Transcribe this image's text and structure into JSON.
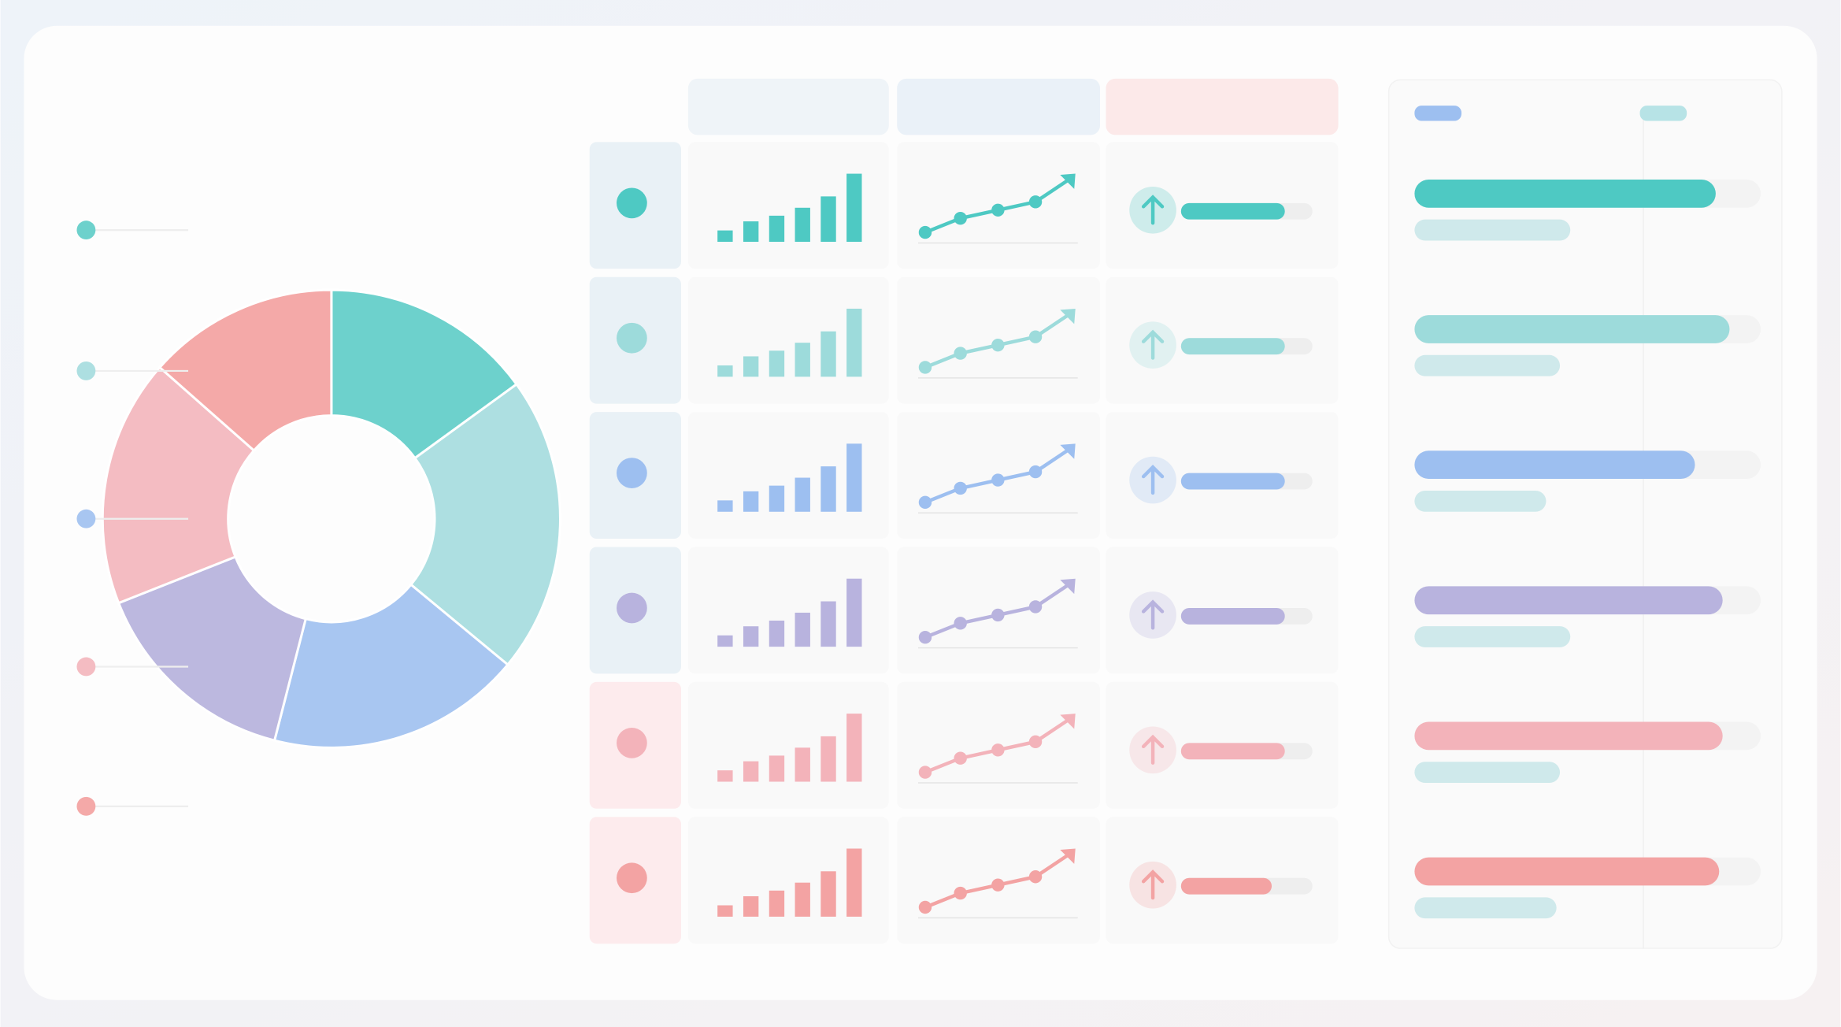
{
  "donut": {
    "segments": [
      {
        "color": "#6dd1cc",
        "value": 15
      },
      {
        "color": "#addfe1",
        "value": 21
      },
      {
        "color": "#a8c6f1",
        "value": 18
      },
      {
        "color": "#bcb8df",
        "value": 15
      },
      {
        "color": "#f4bcc2",
        "value": 17.5
      },
      {
        "color": "#f4a9a8",
        "value": 13.5
      }
    ]
  },
  "rows": [
    {
      "color": "#4ec9c3",
      "bars": [
        1,
        1.8,
        2.3,
        3,
        4,
        6
      ],
      "line": [
        0,
        1.2,
        1.9,
        2.6,
        4.6
      ],
      "progress": 0.79
    },
    {
      "color": "#9ddbdb",
      "bars": [
        1,
        1.8,
        2.3,
        3,
        4,
        6
      ],
      "line": [
        0,
        1.2,
        1.9,
        2.6,
        4.6
      ],
      "progress": 0.79
    },
    {
      "color": "#9dbff0",
      "bars": [
        1,
        1.8,
        2.3,
        3,
        4,
        6
      ],
      "line": [
        0,
        1.2,
        1.9,
        2.6,
        4.6
      ],
      "progress": 0.79
    },
    {
      "color": "#b8b3de",
      "bars": [
        1,
        1.8,
        2.3,
        3,
        4,
        6
      ],
      "line": [
        0,
        1.2,
        1.9,
        2.6,
        4.6
      ],
      "progress": 0.79
    },
    {
      "color": "#f3b3ba",
      "bars": [
        1,
        1.8,
        2.3,
        3,
        4,
        6
      ],
      "line": [
        0,
        1.2,
        1.9,
        2.6,
        4.6
      ],
      "progress": 0.79
    },
    {
      "color": "#f3a3a3",
      "bars": [
        1,
        1.8,
        2.3,
        3,
        4,
        6
      ],
      "line": [
        0,
        1.2,
        1.9,
        2.6,
        4.6
      ],
      "progress": 0.69
    }
  ],
  "ranking": [
    {
      "color": "#4ec9c3",
      "value": 0.87,
      "sub": 0.45
    },
    {
      "color": "#9ddbdb",
      "value": 0.91,
      "sub": 0.42
    },
    {
      "color": "#9dbff0",
      "value": 0.81,
      "sub": 0.38
    },
    {
      "color": "#b8b3de",
      "value": 0.89,
      "sub": 0.45
    },
    {
      "color": "#f3b3ba",
      "value": 0.89,
      "sub": 0.42
    },
    {
      "color": "#f3a3a3",
      "value": 0.88,
      "sub": 0.41
    }
  ]
}
